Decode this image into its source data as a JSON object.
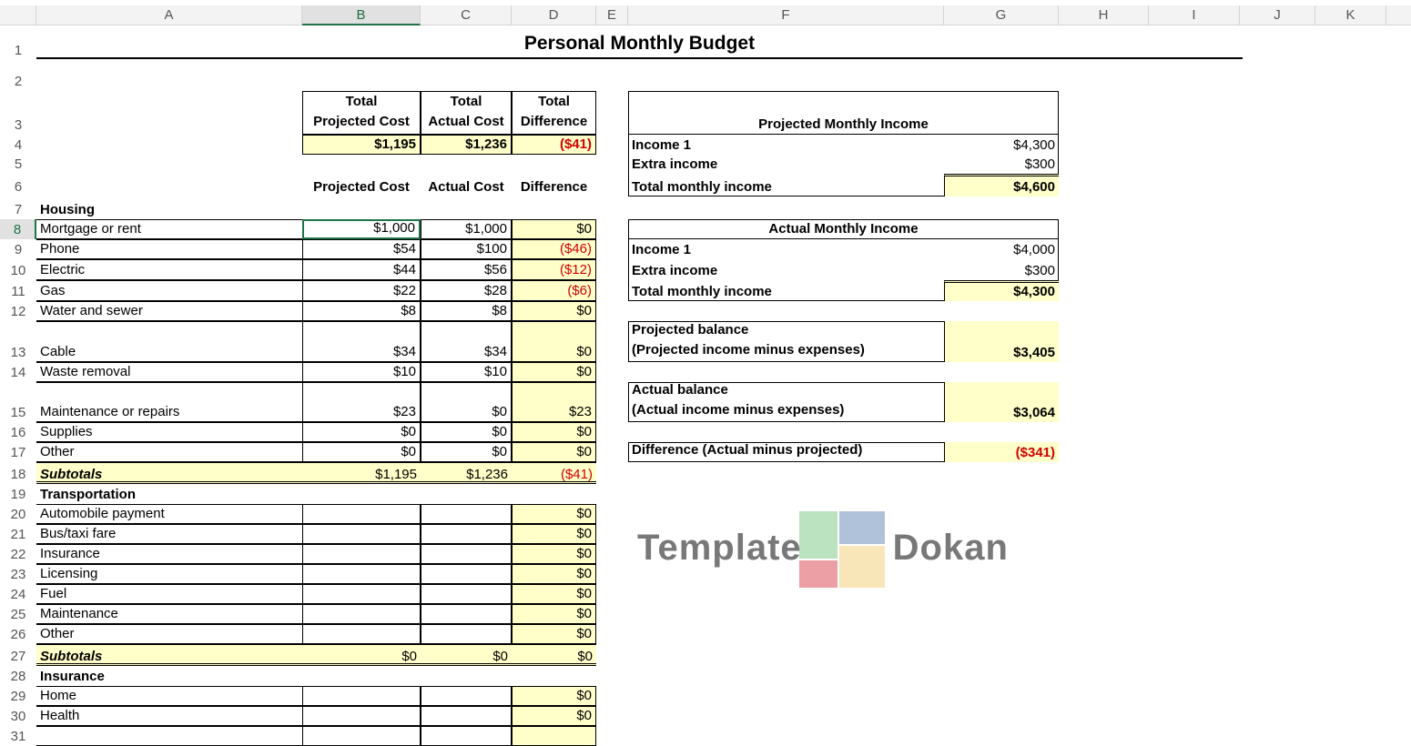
{
  "columns": [
    "A",
    "B",
    "C",
    "D",
    "E",
    "F",
    "G",
    "H",
    "I",
    "J",
    "K"
  ],
  "selected_cell": "B8",
  "title": "Personal Monthly Budget",
  "summary": {
    "headers": [
      {
        "line1": "Total",
        "line2": "Projected Cost"
      },
      {
        "line1": "Total",
        "line2": "Actual Cost"
      },
      {
        "line1": "Total",
        "line2": "Difference"
      }
    ],
    "values": [
      "$1,195",
      "$1,236",
      "($41)"
    ]
  },
  "table_headers": [
    "Projected Cost",
    "Actual Cost",
    "Difference"
  ],
  "sections": [
    {
      "title": "Housing",
      "items": [
        {
          "label": "Mortgage or rent",
          "projected": "$1,000",
          "actual": "$1,000",
          "difference": "$0"
        },
        {
          "label": "Phone",
          "projected": "$54",
          "actual": "$100",
          "difference": "($46)"
        },
        {
          "label": "Electric",
          "projected": "$44",
          "actual": "$56",
          "difference": "($12)"
        },
        {
          "label": "Gas",
          "projected": "$22",
          "actual": "$28",
          "difference": "($6)"
        },
        {
          "label": "Water and sewer",
          "projected": "$8",
          "actual": "$8",
          "difference": "$0"
        },
        {
          "label": "Cable",
          "projected": "$34",
          "actual": "$34",
          "difference": "$0"
        },
        {
          "label": "Waste removal",
          "projected": "$10",
          "actual": "$10",
          "difference": "$0"
        },
        {
          "label": "Maintenance or repairs",
          "projected": "$23",
          "actual": "$0",
          "difference": "$23"
        },
        {
          "label": "Supplies",
          "projected": "$0",
          "actual": "$0",
          "difference": "$0"
        },
        {
          "label": "Other",
          "projected": "$0",
          "actual": "$0",
          "difference": "$0"
        }
      ],
      "subtotal": {
        "label": "Subtotals",
        "projected": "$1,195",
        "actual": "$1,236",
        "difference": "($41)"
      }
    },
    {
      "title": "Transportation",
      "items": [
        {
          "label": "Automobile payment",
          "projected": "",
          "actual": "",
          "difference": "$0"
        },
        {
          "label": "Bus/taxi fare",
          "projected": "",
          "actual": "",
          "difference": "$0"
        },
        {
          "label": "Insurance",
          "projected": "",
          "actual": "",
          "difference": "$0"
        },
        {
          "label": "Licensing",
          "projected": "",
          "actual": "",
          "difference": "$0"
        },
        {
          "label": "Fuel",
          "projected": "",
          "actual": "",
          "difference": "$0"
        },
        {
          "label": "Maintenance",
          "projected": "",
          "actual": "",
          "difference": "$0"
        },
        {
          "label": "Other",
          "projected": "",
          "actual": "",
          "difference": "$0"
        }
      ],
      "subtotal": {
        "label": "Subtotals",
        "projected": "$0",
        "actual": "$0",
        "difference": "$0"
      }
    },
    {
      "title": "Insurance",
      "items": [
        {
          "label": "Home",
          "projected": "",
          "actual": "",
          "difference": "$0"
        },
        {
          "label": "Health",
          "projected": "",
          "actual": "",
          "difference": "$0"
        }
      ]
    }
  ],
  "projected_income": {
    "title": "Projected Monthly Income",
    "rows": [
      {
        "label": "Income 1",
        "value": "$4,300"
      },
      {
        "label": "Extra income",
        "value": "$300"
      }
    ],
    "total_label": "Total monthly income",
    "total_value": "$4,600"
  },
  "actual_income": {
    "title": "Actual Monthly Income",
    "rows": [
      {
        "label": "Income 1",
        "value": "$4,000"
      },
      {
        "label": "Extra income",
        "value": "$300"
      }
    ],
    "total_label": "Total monthly income",
    "total_value": "$4,300"
  },
  "balances": {
    "projected_line1": "Projected balance",
    "projected_line2": "(Projected income minus expenses)",
    "projected_value": "$3,405",
    "actual_line1": "Actual balance",
    "actual_line2": "(Actual income minus expenses)",
    "actual_value": "$3,064",
    "difference_label": "Difference (Actual minus projected)",
    "difference_value": "($341)"
  },
  "watermark": "Template Dokan",
  "colors": {
    "negative": "#d00000",
    "highlight": "#ffffc9",
    "selection": "#217346"
  }
}
